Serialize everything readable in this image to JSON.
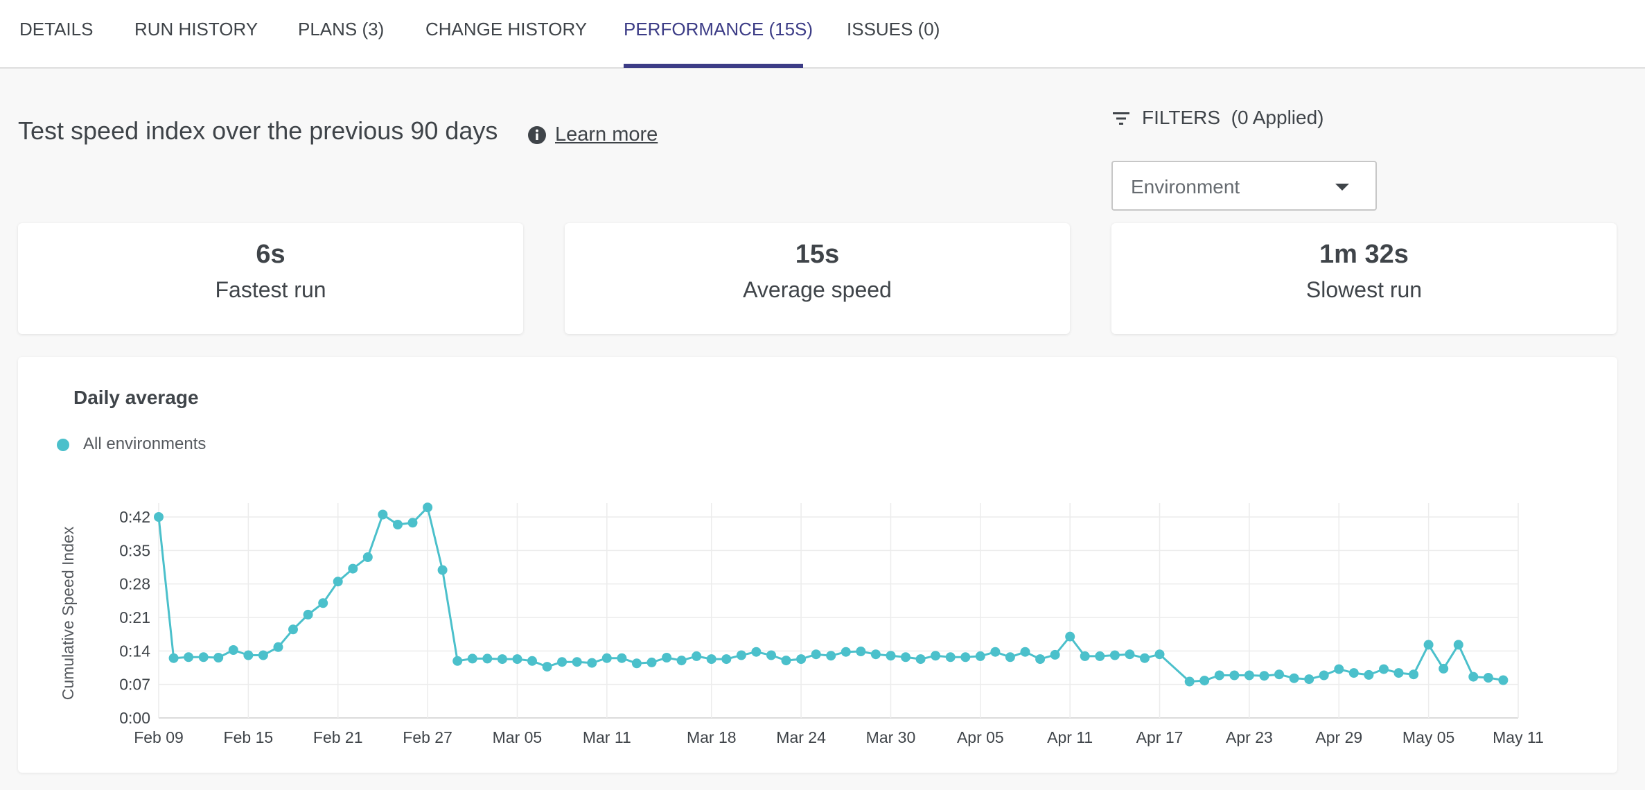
{
  "tabs": [
    {
      "label": "DETAILS"
    },
    {
      "label": "RUN HISTORY"
    },
    {
      "label": "PLANS (3)"
    },
    {
      "label": "CHANGE HISTORY"
    },
    {
      "label": "PERFORMANCE (15S)"
    },
    {
      "label": "ISSUES (0)"
    }
  ],
  "active_tab": "PERFORMANCE (15S)",
  "header": {
    "title": "Test speed index over the previous 90 days",
    "info_icon": "info-icon",
    "learn_more": "Learn more"
  },
  "filters": {
    "label": "FILTERS",
    "applied": "(0 Applied)",
    "icon": "filter-icon",
    "environment_placeholder": "Environment"
  },
  "stats": [
    {
      "value": "6s",
      "label": "Fastest run"
    },
    {
      "value": "15s",
      "label": "Average speed"
    },
    {
      "value": "1m 32s",
      "label": "Slowest run"
    }
  ],
  "chart": {
    "title": "Daily average",
    "legend": "All environments"
  },
  "colors": {
    "accent": "#3c3c86",
    "series": "#4bc0cb",
    "text": "#3f4449",
    "grid": "#ececec"
  },
  "chart_data": {
    "type": "line",
    "title": "Daily average",
    "ylabel": "Cumulative Speed Index",
    "xlabel": "",
    "x_tick_labels": [
      "Feb 09",
      "Feb 15",
      "Feb 21",
      "Feb 27",
      "Mar 05",
      "Mar 11",
      "Mar 18",
      "Mar 24",
      "Mar 30",
      "Apr 05",
      "Apr 11",
      "Apr 17",
      "Apr 23",
      "Apr 29",
      "May 05",
      "May 11"
    ],
    "y_tick_labels": [
      "0:00",
      "0:07",
      "0:14",
      "0:21",
      "0:28",
      "0:35",
      "0:42"
    ],
    "ylim_seconds": [
      0,
      42
    ],
    "grid": true,
    "legend_position": "top-left",
    "series": [
      {
        "name": "All environments",
        "points": [
          [
            "Feb 09",
            42
          ],
          [
            "Feb 10",
            12.5
          ],
          [
            "Feb 11",
            12.7
          ],
          [
            "Feb 12",
            12.7
          ],
          [
            "Feb 13",
            12.6
          ],
          [
            "Feb 14",
            14.2
          ],
          [
            "Feb 15",
            13.1
          ],
          [
            "Feb 16",
            13.1
          ],
          [
            "Feb 17",
            14.8
          ],
          [
            "Feb 18",
            18.5
          ],
          [
            "Feb 19",
            21.6
          ],
          [
            "Feb 20",
            24
          ],
          [
            "Feb 21",
            28.5
          ],
          [
            "Feb 22",
            31.2
          ],
          [
            "Feb 23",
            33.6
          ],
          [
            "Feb 24",
            42.5
          ],
          [
            "Feb 25",
            40.4
          ],
          [
            "Feb 26",
            40.8
          ],
          [
            "Feb 27",
            44
          ],
          [
            "Feb 28",
            30.9
          ],
          [
            "Mar 01",
            11.9
          ],
          [
            "Mar 02",
            12.4
          ],
          [
            "Mar 03",
            12.4
          ],
          [
            "Mar 04",
            12.3
          ],
          [
            "Mar 05",
            12.3
          ],
          [
            "Mar 06",
            11.9
          ],
          [
            "Mar 07",
            10.7
          ],
          [
            "Mar 08",
            11.7
          ],
          [
            "Mar 09",
            11.7
          ],
          [
            "Mar 10",
            11.5
          ],
          [
            "Mar 11",
            12.5
          ],
          [
            "Mar 12",
            12.5
          ],
          [
            "Mar 13",
            11.4
          ],
          [
            "Mar 14",
            11.6
          ],
          [
            "Mar 15",
            12.6
          ],
          [
            "Mar 16",
            12
          ],
          [
            "Mar 17",
            12.9
          ],
          [
            "Mar 18",
            12.3
          ],
          [
            "Mar 19",
            12.3
          ],
          [
            "Mar 20",
            13.1
          ],
          [
            "Mar 21",
            13.8
          ],
          [
            "Mar 22",
            13.1
          ],
          [
            "Mar 23",
            12
          ],
          [
            "Mar 24",
            12.3
          ],
          [
            "Mar 25",
            13.3
          ],
          [
            "Mar 26",
            13
          ],
          [
            "Mar 27",
            13.8
          ],
          [
            "Mar 28",
            13.9
          ],
          [
            "Mar 29",
            13.3
          ],
          [
            "Mar 30",
            13
          ],
          [
            "Mar 31",
            12.7
          ],
          [
            "Apr 01",
            12.3
          ],
          [
            "Apr 02",
            13
          ],
          [
            "Apr 03",
            12.7
          ],
          [
            "Apr 04",
            12.7
          ],
          [
            "Apr 05",
            12.9
          ],
          [
            "Apr 06",
            13.8
          ],
          [
            "Apr 07",
            12.7
          ],
          [
            "Apr 08",
            13.8
          ],
          [
            "Apr 09",
            12.3
          ],
          [
            "Apr 10",
            13.2
          ],
          [
            "Apr 11",
            17
          ],
          [
            "Apr 12",
            12.9
          ],
          [
            "Apr 13",
            12.9
          ],
          [
            "Apr 14",
            13.1
          ],
          [
            "Apr 15",
            13.3
          ],
          [
            "Apr 16",
            12.5
          ],
          [
            "Apr 17",
            13.3
          ],
          [
            "Apr 19",
            7.6
          ],
          [
            "Apr 20",
            7.8
          ],
          [
            "Apr 21",
            8.9
          ],
          [
            "Apr 22",
            8.9
          ],
          [
            "Apr 23",
            8.9
          ],
          [
            "Apr 24",
            8.8
          ],
          [
            "Apr 25",
            9.1
          ],
          [
            "Apr 26",
            8.3
          ],
          [
            "Apr 27",
            8.1
          ],
          [
            "Apr 28",
            8.9
          ],
          [
            "Apr 29",
            10.2
          ],
          [
            "Apr 30",
            9.4
          ],
          [
            "May 01",
            9
          ],
          [
            "May 02",
            10.2
          ],
          [
            "May 03",
            9.4
          ],
          [
            "May 04",
            9.1
          ],
          [
            "May 05",
            15.3
          ],
          [
            "May 06",
            10.3
          ],
          [
            "May 07",
            15.3
          ],
          [
            "May 08",
            8.6
          ],
          [
            "May 09",
            8.4
          ],
          [
            "May 10",
            7.9
          ]
        ]
      }
    ]
  }
}
